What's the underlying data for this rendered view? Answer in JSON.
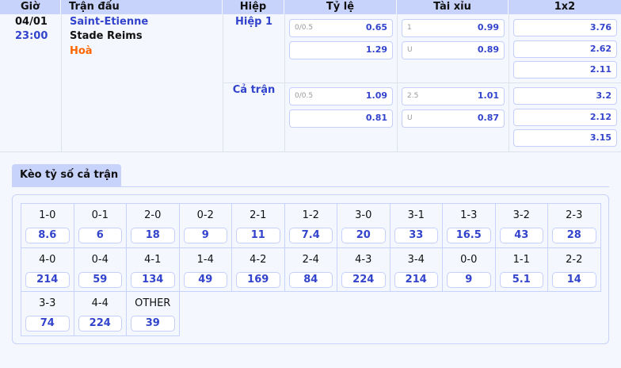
{
  "header": {
    "time": "Giờ",
    "match": "Trận đấu",
    "half": "Hiệp",
    "handicap": "Tỷ lệ",
    "overunder": "Tài xỉu",
    "x12": "1x2"
  },
  "match": {
    "date": "04/01",
    "time": "23:00",
    "home": "Saint-Etienne",
    "away": "Stade Reims",
    "draw": "Hoà"
  },
  "periods": [
    {
      "label": "Hiệp 1",
      "handicap": [
        {
          "line": "0/0.5",
          "odds": "0.65"
        },
        {
          "line": "",
          "odds": "1.29"
        }
      ],
      "overunder": [
        {
          "line": "1",
          "odds": "0.99"
        },
        {
          "line": "U",
          "odds": "0.89"
        }
      ],
      "x12": [
        "3.76",
        "2.62",
        "2.11"
      ]
    },
    {
      "label": "Cả trận",
      "handicap": [
        {
          "line": "0/0.5",
          "odds": "1.09"
        },
        {
          "line": "",
          "odds": "0.81"
        }
      ],
      "overunder": [
        {
          "line": "2.5",
          "odds": "1.01"
        },
        {
          "line": "U",
          "odds": "0.87"
        }
      ],
      "x12": [
        "3.2",
        "2.12",
        "3.15"
      ]
    }
  ],
  "correct_score": {
    "tab": "Kèo tỷ số cả trận",
    "items": [
      {
        "s": "1-0",
        "o": "8.6"
      },
      {
        "s": "0-1",
        "o": "6"
      },
      {
        "s": "2-0",
        "o": "18"
      },
      {
        "s": "0-2",
        "o": "9"
      },
      {
        "s": "2-1",
        "o": "11"
      },
      {
        "s": "1-2",
        "o": "7.4"
      },
      {
        "s": "3-0",
        "o": "20"
      },
      {
        "s": "3-1",
        "o": "33"
      },
      {
        "s": "1-3",
        "o": "16.5"
      },
      {
        "s": "3-2",
        "o": "43"
      },
      {
        "s": "2-3",
        "o": "28"
      },
      {
        "s": "4-0",
        "o": "214"
      },
      {
        "s": "0-4",
        "o": "59"
      },
      {
        "s": "4-1",
        "o": "134"
      },
      {
        "s": "1-4",
        "o": "49"
      },
      {
        "s": "4-2",
        "o": "169"
      },
      {
        "s": "2-4",
        "o": "84"
      },
      {
        "s": "4-3",
        "o": "224"
      },
      {
        "s": "3-4",
        "o": "214"
      },
      {
        "s": "0-0",
        "o": "9"
      },
      {
        "s": "1-1",
        "o": "5.1"
      },
      {
        "s": "2-2",
        "o": "14"
      },
      {
        "s": "3-3",
        "o": "74"
      },
      {
        "s": "4-4",
        "o": "224"
      },
      {
        "s": "OTHER",
        "o": "39"
      }
    ]
  },
  "colors": {
    "header": "#c8d3fb",
    "accent": "#3344cc",
    "draw": "#ff6600"
  }
}
